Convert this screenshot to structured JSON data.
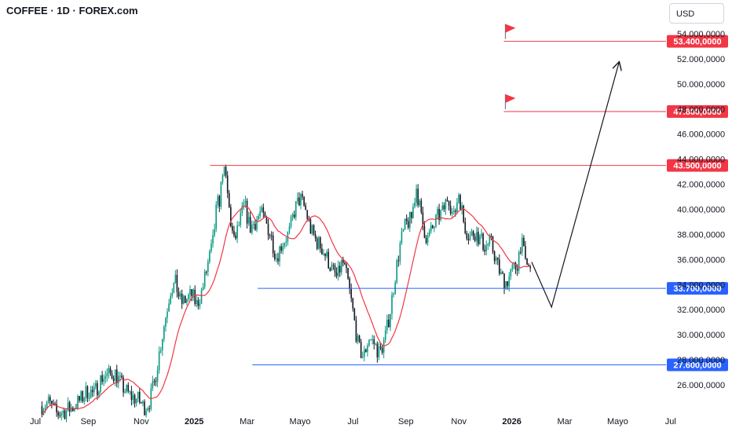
{
  "header": {
    "title": "COFFEE · 1D · FOREX.com",
    "currency": "USD"
  },
  "chart_data": {
    "type": "candlestick",
    "symbol": "COFFEE",
    "timeframe": "1D",
    "source": "FOREX.com",
    "currency": "USD",
    "y_ticks": [
      {
        "v": 26000,
        "label": "26.000,0000"
      },
      {
        "v": 28000,
        "label": "28.000,0000"
      },
      {
        "v": 30000,
        "label": "30.000,0000"
      },
      {
        "v": 32000,
        "label": "32.000,0000"
      },
      {
        "v": 34000,
        "label": "34.000,0000"
      },
      {
        "v": 36000,
        "label": "36.000,0000"
      },
      {
        "v": 38000,
        "label": "38.000,0000"
      },
      {
        "v": 40000,
        "label": "40.000,0000"
      },
      {
        "v": 42000,
        "label": "42.000,0000"
      },
      {
        "v": 44000,
        "label": "44.000,0000"
      },
      {
        "v": 46000,
        "label": "46.000,0000"
      },
      {
        "v": 48000,
        "label": "48.000,0000"
      },
      {
        "v": 50000,
        "label": "50.000,0000"
      },
      {
        "v": 52000,
        "label": "52.000,0000"
      },
      {
        "v": 54000,
        "label": "54.000,0000"
      }
    ],
    "x_ticks": [
      {
        "t": 0,
        "label": "Jul",
        "bold": false
      },
      {
        "t": 2,
        "label": "Sep",
        "bold": false
      },
      {
        "t": 4,
        "label": "Nov",
        "bold": false
      },
      {
        "t": 6,
        "label": "2025",
        "bold": true
      },
      {
        "t": 8,
        "label": "Mar",
        "bold": false
      },
      {
        "t": 10,
        "label": "Mayo",
        "bold": false
      },
      {
        "t": 12,
        "label": "Jul",
        "bold": false
      },
      {
        "t": 14,
        "label": "Sep",
        "bold": false
      },
      {
        "t": 16,
        "label": "Nov",
        "bold": false
      },
      {
        "t": 18,
        "label": "2026",
        "bold": true
      },
      {
        "t": 20,
        "label": "Mar",
        "bold": false
      },
      {
        "t": 22,
        "label": "Mayo",
        "bold": false
      },
      {
        "t": 24,
        "label": "Jul",
        "bold": false
      }
    ],
    "levels": [
      {
        "value": 53400,
        "label": "53.400,0000",
        "color": "#f23645",
        "from_t": 17.7,
        "flag": true
      },
      {
        "value": 47800,
        "label": "47.800,0000",
        "color": "#f23645",
        "from_t": 17.7,
        "flag": true
      },
      {
        "value": 43500,
        "label": "43.500,0000",
        "color": "#f23645",
        "from_t": 6.6,
        "flag": false
      },
      {
        "value": 33700,
        "label": "33.700,0000",
        "color": "#2962ff",
        "from_t": 8.4,
        "flag": false
      },
      {
        "value": 27600,
        "label": "27.600,0000",
        "color": "#2962ff",
        "from_t": 8.2,
        "flag": false
      }
    ],
    "closes": [
      {
        "t": 0.25,
        "v": 24300
      },
      {
        "t": 0.5,
        "v": 24600
      },
      {
        "t": 0.8,
        "v": 23700
      },
      {
        "t": 1.1,
        "v": 23900
      },
      {
        "t": 1.4,
        "v": 24200
      },
      {
        "t": 1.7,
        "v": 24800
      },
      {
        "t": 2.0,
        "v": 25600
      },
      {
        "t": 2.2,
        "v": 25200
      },
      {
        "t": 2.5,
        "v": 26600
      },
      {
        "t": 2.8,
        "v": 26800
      },
      {
        "t": 3.0,
        "v": 27000
      },
      {
        "t": 3.3,
        "v": 25800
      },
      {
        "t": 3.6,
        "v": 25100
      },
      {
        "t": 3.9,
        "v": 24800
      },
      {
        "t": 4.1,
        "v": 24200
      },
      {
        "t": 4.3,
        "v": 24600
      },
      {
        "t": 4.5,
        "v": 26200
      },
      {
        "t": 4.7,
        "v": 28800
      },
      {
        "t": 4.9,
        "v": 31200
      },
      {
        "t": 5.1,
        "v": 33600
      },
      {
        "t": 5.3,
        "v": 34100
      },
      {
        "t": 5.5,
        "v": 32500
      },
      {
        "t": 5.7,
        "v": 32800
      },
      {
        "t": 5.9,
        "v": 33200
      },
      {
        "t": 6.1,
        "v": 32400
      },
      {
        "t": 6.3,
        "v": 33500
      },
      {
        "t": 6.5,
        "v": 35500
      },
      {
        "t": 6.7,
        "v": 37200
      },
      {
        "t": 6.85,
        "v": 40200
      },
      {
        "t": 7.0,
        "v": 41000
      },
      {
        "t": 7.05,
        "v": 43400
      },
      {
        "t": 7.2,
        "v": 42300
      },
      {
        "t": 7.35,
        "v": 39500
      },
      {
        "t": 7.5,
        "v": 37300
      },
      {
        "t": 7.7,
        "v": 38800
      },
      {
        "t": 7.9,
        "v": 40400
      },
      {
        "t": 8.1,
        "v": 38500
      },
      {
        "t": 8.3,
        "v": 39000
      },
      {
        "t": 8.5,
        "v": 39700
      },
      {
        "t": 8.7,
        "v": 39000
      },
      {
        "t": 8.9,
        "v": 37900
      },
      {
        "t": 9.1,
        "v": 36200
      },
      {
        "t": 9.3,
        "v": 37200
      },
      {
        "t": 9.6,
        "v": 38200
      },
      {
        "t": 9.8,
        "v": 40000
      },
      {
        "t": 10.0,
        "v": 40900
      },
      {
        "t": 10.2,
        "v": 40000
      },
      {
        "t": 10.4,
        "v": 38400
      },
      {
        "t": 10.6,
        "v": 37500
      },
      {
        "t": 10.8,
        "v": 37000
      },
      {
        "t": 11.0,
        "v": 36200
      },
      {
        "t": 11.2,
        "v": 35200
      },
      {
        "t": 11.4,
        "v": 34500
      },
      {
        "t": 11.6,
        "v": 35900
      },
      {
        "t": 11.8,
        "v": 34300
      },
      {
        "t": 12.0,
        "v": 31800
      },
      {
        "t": 12.2,
        "v": 29000
      },
      {
        "t": 12.4,
        "v": 28200
      },
      {
        "t": 12.6,
        "v": 29800
      },
      {
        "t": 12.8,
        "v": 29300
      },
      {
        "t": 13.0,
        "v": 28500
      },
      {
        "t": 13.2,
        "v": 29600
      },
      {
        "t": 13.4,
        "v": 31800
      },
      {
        "t": 13.6,
        "v": 34800
      },
      {
        "t": 13.8,
        "v": 37400
      },
      {
        "t": 14.0,
        "v": 38800
      },
      {
        "t": 14.2,
        "v": 39200
      },
      {
        "t": 14.4,
        "v": 41800
      },
      {
        "t": 14.6,
        "v": 39000
      },
      {
        "t": 14.8,
        "v": 37600
      },
      {
        "t": 15.0,
        "v": 38400
      },
      {
        "t": 15.2,
        "v": 39400
      },
      {
        "t": 15.4,
        "v": 39800
      },
      {
        "t": 15.6,
        "v": 41200
      },
      {
        "t": 15.8,
        "v": 39200
      },
      {
        "t": 16.0,
        "v": 41400
      },
      {
        "t": 16.2,
        "v": 38800
      },
      {
        "t": 16.4,
        "v": 37800
      },
      {
        "t": 16.6,
        "v": 38200
      },
      {
        "t": 16.8,
        "v": 37600
      },
      {
        "t": 17.0,
        "v": 37000
      },
      {
        "t": 17.2,
        "v": 37400
      },
      {
        "t": 17.4,
        "v": 36000
      },
      {
        "t": 17.6,
        "v": 34600
      },
      {
        "t": 17.8,
        "v": 34200
      },
      {
        "t": 18.0,
        "v": 35000
      },
      {
        "t": 18.2,
        "v": 35600
      },
      {
        "t": 18.35,
        "v": 37500
      },
      {
        "t": 18.5,
        "v": 36000
      },
      {
        "t": 18.7,
        "v": 35000
      }
    ],
    "projection": [
      {
        "t": 18.75,
        "v": 35800
      },
      {
        "t": 19.5,
        "v": 32200
      },
      {
        "t": 22.05,
        "v": 51700
      }
    ]
  }
}
